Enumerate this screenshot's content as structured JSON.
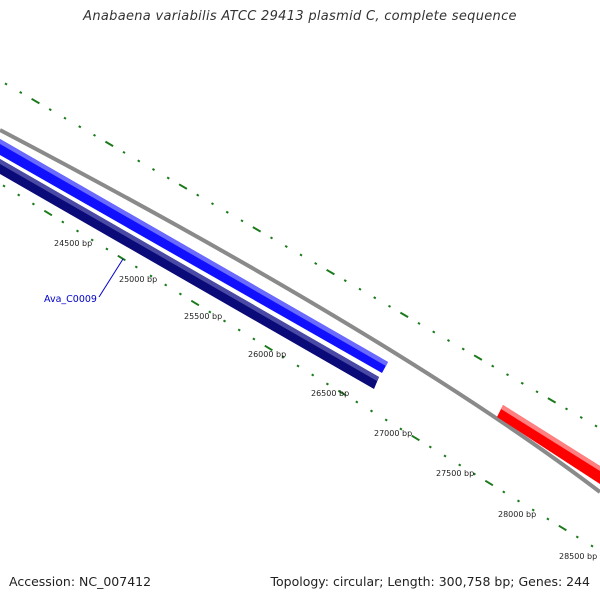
{
  "title": "Anabaena variabilis ATCC 29413 plasmid C, complete sequence",
  "footer": {
    "accession": "Accession: NC_007412",
    "summary": "Topology: circular; Length: 300,758 bp; Genes: 244"
  },
  "scale_labels": [
    "24500 bp",
    "25000 bp",
    "25500 bp",
    "26000 bp",
    "26500 bp",
    "27000 bp",
    "27500 bp",
    "28000 bp",
    "28500 bp"
  ],
  "genes": [
    {
      "label": "Ava_C0009",
      "strand": "forward",
      "color": "#0000ff"
    },
    {
      "label": "",
      "strand": "reverse",
      "color": "#000080"
    },
    {
      "label": "",
      "strand": "forward",
      "color": "#ff0000"
    }
  ],
  "colors": {
    "backbone": "#8a8a8a",
    "tick": "#1b7a1b",
    "gene_label": "#0000cc"
  }
}
